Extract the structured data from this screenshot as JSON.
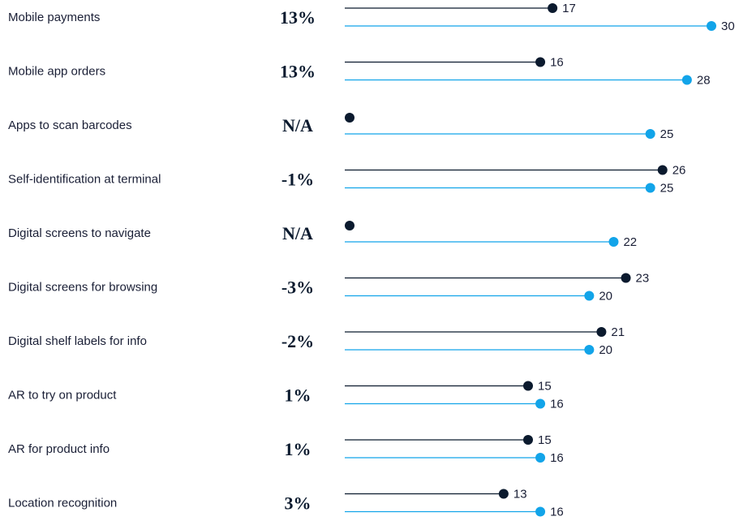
{
  "chart_data": {
    "type": "dot-line",
    "colors": {
      "series_a": "#0b1a2e",
      "series_b": "#12a4e9"
    },
    "xlim": [
      0,
      30
    ],
    "series": [
      {
        "values": [
          17,
          16,
          null,
          26,
          null,
          23,
          21,
          15,
          15,
          13
        ]
      },
      {
        "values": [
          30,
          28,
          25,
          25,
          22,
          20,
          20,
          16,
          16,
          16
        ]
      }
    ],
    "categories": [
      "Mobile payments",
      "Mobile app orders",
      "Apps to scan barcodes",
      "Self-identification at terminal",
      "Digital screens to navigate",
      "Digital screens for browsing",
      "Digital shelf labels for info",
      "AR to try on product",
      "AR for product info",
      "Location recognition"
    ],
    "changes": [
      "13%",
      "13%",
      "N/A",
      "-1%",
      "N/A",
      "-3%",
      "-2%",
      "1%",
      "1%",
      "3%"
    ]
  }
}
